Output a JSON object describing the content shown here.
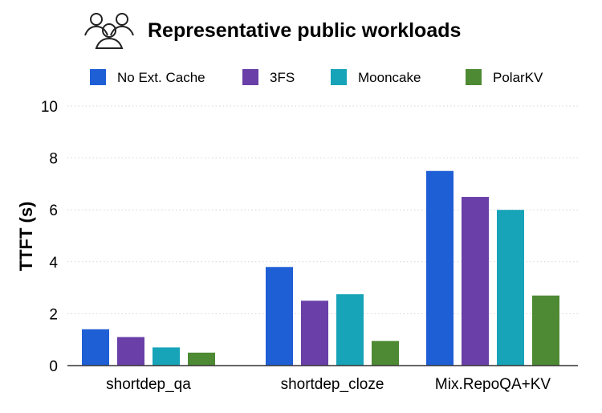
{
  "header": {
    "title": "Representative public workloads",
    "icon": "users-group-icon"
  },
  "chart_data": {
    "type": "bar",
    "title": "Representative public workloads",
    "xlabel": "",
    "ylabel": "TTFT (s)",
    "ylim": [
      0,
      10
    ],
    "yticks": [
      "0",
      "2",
      "4",
      "6",
      "8",
      "10"
    ],
    "grid": true,
    "legend_position": "top",
    "categories": [
      "shortdep_qa",
      "shortdep_cloze",
      "Mix.RepoQA+KV"
    ],
    "series": [
      {
        "name": "No Ext. Cache",
        "color": "#1f5fd6",
        "values": [
          1.4,
          3.8,
          7.5
        ]
      },
      {
        "name": "3FS",
        "color": "#6a3fa8",
        "values": [
          1.1,
          2.5,
          6.5
        ]
      },
      {
        "name": "Mooncake",
        "color": "#17a3b8",
        "values": [
          0.7,
          2.75,
          6.0
        ]
      },
      {
        "name": "PolarKV",
        "color": "#4e8a34",
        "values": [
          0.5,
          0.95,
          2.7
        ]
      }
    ]
  }
}
